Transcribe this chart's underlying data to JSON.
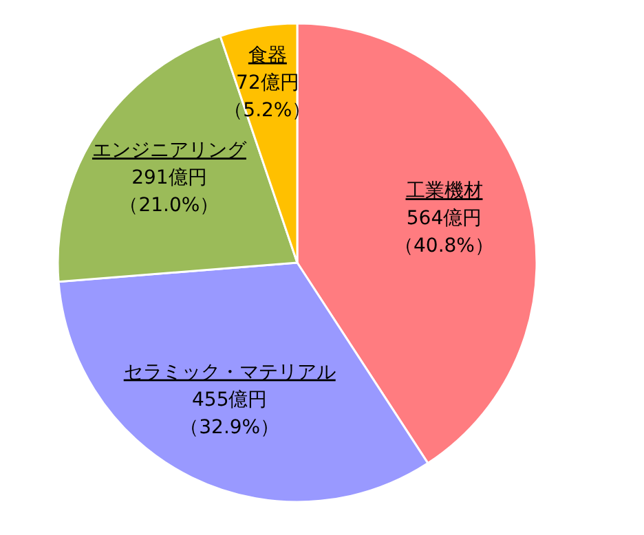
{
  "chart_data": {
    "type": "pie",
    "categories": [
      "工業機材",
      "セラミック・マテリアル",
      "エンジニアリング",
      "食器"
    ],
    "values": [
      564,
      455,
      291,
      72
    ],
    "colors": [
      "#ff7c80",
      "#9999ff",
      "#9bbb59",
      "#ffc000"
    ],
    "value_labels": [
      "564億円（40.8%）",
      "455億円（32.9%）",
      "291億円（21.0%）",
      "72億円（5.2%）"
    ]
  }
}
